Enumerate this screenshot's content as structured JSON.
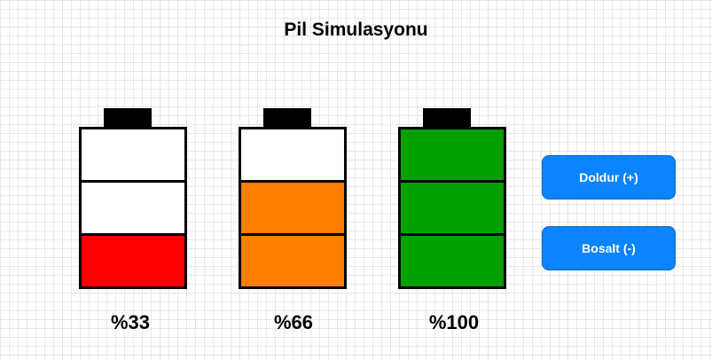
{
  "title": "Pil Simulasyonu",
  "batteries": [
    {
      "label": "%33",
      "level": 33,
      "filled_cells": 1,
      "fill_color": "#ff0000"
    },
    {
      "label": "%66",
      "level": 66,
      "filled_cells": 2,
      "fill_color": "#ff8000"
    },
    {
      "label": "%100",
      "level": 100,
      "filled_cells": 3,
      "fill_color": "#00a000"
    }
  ],
  "cells_per_battery": 3,
  "empty_cell_color": "#ffffff",
  "buttons": {
    "fill_label": "Doldur (+)",
    "drain_label": "Bosalt (-)",
    "color": "#0a84ff"
  }
}
